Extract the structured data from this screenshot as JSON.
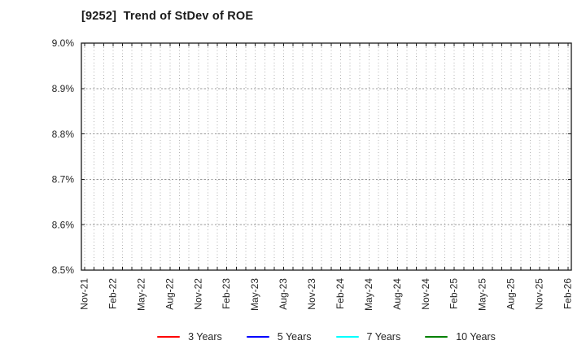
{
  "window": {
    "title": "[9252]  Trend of StDev of ROE"
  },
  "style": {
    "background": "#ffffff",
    "axis_color": "#1a1a1a",
    "text_color": "#262626",
    "vgrid_color": "#b3b3b3",
    "hgrid_color": "#999999"
  },
  "chart_data": {
    "type": "line",
    "title": "[9252]  Trend of StDev of ROE",
    "ticker": "9252",
    "xlabel": "",
    "ylabel": "",
    "x_tick_labels": [
      "Nov-21",
      "Feb-22",
      "May-22",
      "Aug-22",
      "Nov-22",
      "Feb-23",
      "May-23",
      "Aug-23",
      "Nov-23",
      "Feb-24",
      "May-24",
      "Aug-24",
      "Nov-24",
      "Feb-25",
      "May-25",
      "Aug-25",
      "Nov-25",
      "Feb-26"
    ],
    "x_label_interval_months": 3,
    "x_months_total": 52,
    "y_tick_labels": [
      "9.0%",
      "8.9%",
      "8.8%",
      "8.7%",
      "8.6%",
      "8.5%"
    ],
    "y_ticks": [
      9.0,
      8.9,
      8.8,
      8.7,
      8.6,
      8.5
    ],
    "ylim": [
      8.5,
      9.0
    ],
    "y_unit": "%",
    "grid": true,
    "legend_position": "bottom",
    "series": [
      {
        "name": "3 Years",
        "color": "#ff0000",
        "values": []
      },
      {
        "name": "5 Years",
        "color": "#0000ff",
        "values": []
      },
      {
        "name": "7 Years",
        "color": "#00ffff",
        "values": []
      },
      {
        "name": "10 Years",
        "color": "#008000",
        "values": []
      }
    ]
  }
}
